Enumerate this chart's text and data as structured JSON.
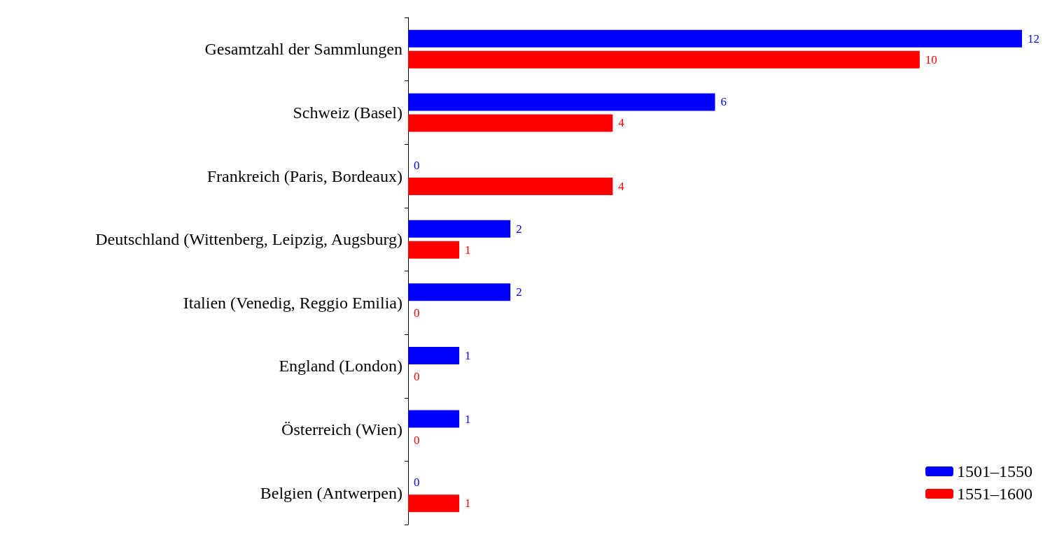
{
  "chart_data": {
    "type": "bar",
    "orientation": "horizontal",
    "categories": [
      "Gesamtzahl der Sammlungen",
      "Schweiz (Basel)",
      "Frankreich (Paris, Bordeaux)",
      "Deutschland (Wittenberg, Leipzig, Augsburg)",
      "Italien (Venedig, Reggio Emilia)",
      "England (London)",
      "Österreich (Wien)",
      "Belgien (Antwerpen)"
    ],
    "series": [
      {
        "name": "1501–1550",
        "color": "#0000ff",
        "values": [
          12,
          6,
          0,
          2,
          2,
          1,
          1,
          0
        ]
      },
      {
        "name": "1551–1600",
        "color": "#ff0000",
        "values": [
          10,
          4,
          4,
          1,
          0,
          0,
          0,
          1
        ]
      }
    ],
    "data_labels": true,
    "legend": "bottom right",
    "tick_labels": "y",
    "grid": false
  }
}
